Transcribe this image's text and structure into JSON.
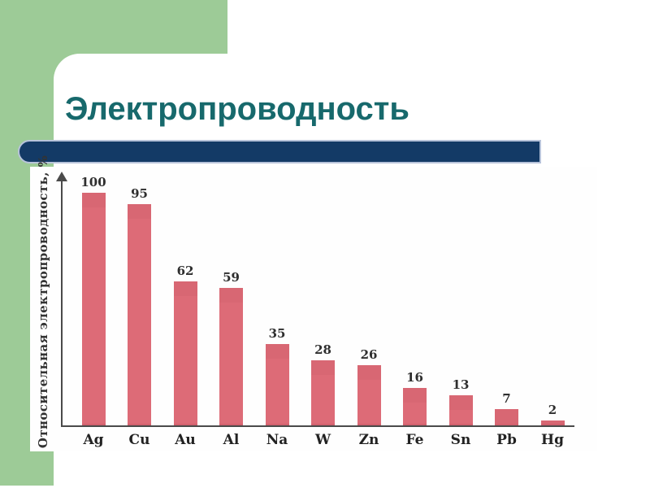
{
  "slide": {
    "title": "Электропроводность"
  },
  "colors": {
    "accent_green": "#9dcb97",
    "divider_navy": "#133a66",
    "divider_border": "#b7c3da",
    "title_teal": "#17696c",
    "bar_pink": "#dd6b77",
    "axis": "#4a4a4a"
  },
  "chart_data": {
    "type": "bar",
    "title": "Электропроводность",
    "categories": [
      "Ag",
      "Cu",
      "Au",
      "Al",
      "Na",
      "W",
      "Zn",
      "Fe",
      "Sn",
      "Pb",
      "Hg"
    ],
    "values": [
      100,
      95,
      62,
      59,
      35,
      28,
      26,
      16,
      13,
      7,
      2
    ],
    "ylabel": "Относительная электропроводность, %",
    "xlabel": "",
    "ylim": [
      0,
      105
    ],
    "grid": false,
    "legend_position": "none",
    "value_labels_shown": true
  }
}
